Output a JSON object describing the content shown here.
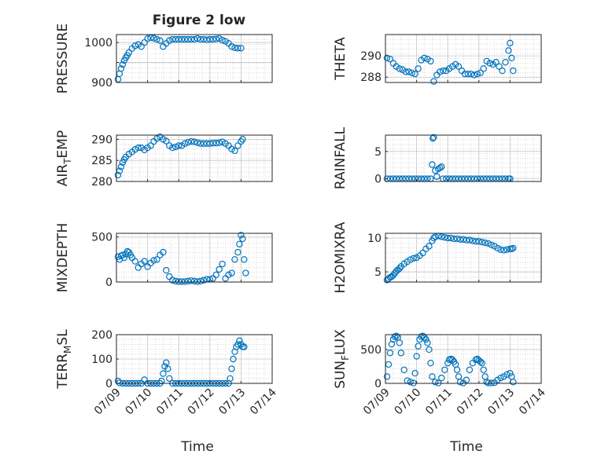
{
  "figure": {
    "title": "Figure 2 low"
  },
  "chart_data": [
    {
      "type": "scatter",
      "id": "pressure",
      "ylabel": "PRESSURE",
      "ylim": [
        900,
        1020
      ],
      "yticks": [
        900,
        950,
        1000
      ],
      "ytick_labels": [
        "900",
        "",
        "1000"
      ],
      "xlim": [
        0,
        5
      ],
      "xticks": [
        0,
        1,
        2,
        3,
        4,
        5
      ],
      "xlabel": "",
      "grid": true,
      "series": [
        {
          "color": "#0072BD",
          "x": [
            0.05,
            0.1,
            0.15,
            0.2,
            0.25,
            0.3,
            0.35,
            0.4,
            0.5,
            0.6,
            0.7,
            0.8,
            0.9,
            1.0,
            1.1,
            1.2,
            1.3,
            1.4,
            1.5,
            1.6,
            1.7,
            1.8,
            1.9,
            2.0,
            2.1,
            2.2,
            2.3,
            2.4,
            2.5,
            2.6,
            2.7,
            2.8,
            2.9,
            3.0,
            3.1,
            3.2,
            3.3,
            3.4,
            3.5,
            3.6,
            3.7,
            3.8,
            3.9,
            4.0
          ],
          "y": [
            908,
            922,
            935,
            945,
            955,
            962,
            968,
            975,
            985,
            992,
            995,
            990,
            1000,
            1010,
            1012,
            1011,
            1008,
            1005,
            990,
            998,
            1005,
            1008,
            1008,
            1008,
            1008,
            1008,
            1008,
            1008,
            1008,
            1010,
            1008,
            1008,
            1007,
            1008,
            1008,
            1009,
            1010,
            1006,
            1003,
            998,
            990,
            987,
            986,
            986
          ]
        }
      ]
    },
    {
      "type": "scatter",
      "id": "theta",
      "ylabel": "THETA",
      "ylim": [
        287.5,
        292
      ],
      "yticks": [
        288,
        290
      ],
      "ytick_labels": [
        "288",
        "290"
      ],
      "xlim": [
        0,
        5
      ],
      "xticks": [
        0,
        1,
        2,
        3,
        4,
        5
      ],
      "xlabel": "",
      "grid": true,
      "series": [
        {
          "color": "#0072BD",
          "x": [
            0.05,
            0.15,
            0.25,
            0.35,
            0.45,
            0.55,
            0.65,
            0.75,
            0.85,
            0.95,
            1.05,
            1.15,
            1.25,
            1.35,
            1.45,
            1.55,
            1.65,
            1.75,
            1.85,
            1.95,
            2.05,
            2.15,
            2.25,
            2.35,
            2.45,
            2.55,
            2.65,
            2.75,
            2.85,
            2.95,
            3.05,
            3.15,
            3.25,
            3.35,
            3.45,
            3.55,
            3.65,
            3.75,
            3.85,
            3.95,
            4.0,
            4.05,
            4.1
          ],
          "y": [
            289.8,
            289.7,
            289.3,
            289.0,
            288.8,
            288.7,
            288.5,
            288.5,
            288.4,
            288.3,
            288.8,
            289.6,
            289.8,
            289.7,
            289.5,
            287.6,
            288.2,
            288.5,
            288.6,
            288.6,
            288.8,
            289.0,
            289.2,
            289.0,
            288.6,
            288.3,
            288.3,
            288.3,
            288.2,
            288.3,
            288.4,
            288.8,
            289.5,
            289.3,
            289.2,
            289.4,
            289.0,
            288.6,
            289.4,
            290.5,
            291.2,
            289.8,
            288.6
          ]
        }
      ]
    },
    {
      "type": "scatter",
      "id": "air_temp",
      "ylabel": "AIR_TEMP",
      "ylim": [
        280,
        291
      ],
      "yticks": [
        280,
        285,
        290
      ],
      "ytick_labels": [
        "280",
        "285",
        "290"
      ],
      "xlim": [
        0,
        5
      ],
      "xticks": [
        0,
        1,
        2,
        3,
        4,
        5
      ],
      "xlabel": "",
      "grid": true,
      "series": [
        {
          "color": "#0072BD",
          "x": [
            0.05,
            0.1,
            0.15,
            0.2,
            0.25,
            0.3,
            0.4,
            0.5,
            0.6,
            0.7,
            0.8,
            0.9,
            1.0,
            1.1,
            1.2,
            1.3,
            1.4,
            1.5,
            1.6,
            1.7,
            1.8,
            1.9,
            2.0,
            2.1,
            2.2,
            2.3,
            2.4,
            2.5,
            2.6,
            2.7,
            2.8,
            2.9,
            3.0,
            3.1,
            3.2,
            3.3,
            3.4,
            3.5,
            3.6,
            3.7,
            3.8,
            3.9,
            4.0,
            4.05
          ],
          "y": [
            281.5,
            282.5,
            283.5,
            284.5,
            285.2,
            285.8,
            286.5,
            287.0,
            287.6,
            288.0,
            288.0,
            287.5,
            288.0,
            288.5,
            289.5,
            290.2,
            290.6,
            290.0,
            289.6,
            288.5,
            288.0,
            288.2,
            288.5,
            288.5,
            289.0,
            289.3,
            289.5,
            289.4,
            289.2,
            289.0,
            289.0,
            289.0,
            289.0,
            289.1,
            289.1,
            289.2,
            289.4,
            289.0,
            288.5,
            287.7,
            287.3,
            288.5,
            289.5,
            290.0
          ]
        }
      ]
    },
    {
      "type": "scatter",
      "id": "rainfall",
      "ylabel": "RAINFALL",
      "ylim": [
        -0.5,
        8
      ],
      "yticks": [
        0,
        5
      ],
      "ytick_labels": [
        "0",
        "5"
      ],
      "xlim": [
        0,
        5
      ],
      "xticks": [
        0,
        1,
        2,
        3,
        4,
        5
      ],
      "xlabel": "",
      "grid": true,
      "series": [
        {
          "color": "#0072BD",
          "x": [
            0.05,
            0.15,
            0.25,
            0.35,
            0.45,
            0.55,
            0.65,
            0.75,
            0.85,
            0.95,
            1.05,
            1.15,
            1.25,
            1.35,
            1.45,
            1.5,
            1.52,
            1.55,
            1.6,
            1.65,
            1.7,
            1.75,
            1.8,
            1.85,
            1.95,
            2.05,
            2.15,
            2.25,
            2.35,
            2.45,
            2.55,
            2.65,
            2.75,
            2.85,
            2.95,
            3.05,
            3.15,
            3.25,
            3.35,
            3.45,
            3.55,
            3.65,
            3.75,
            3.85,
            3.95,
            4.0
          ],
          "y": [
            0,
            0,
            0,
            0,
            0,
            0,
            0,
            0,
            0,
            0,
            0,
            0,
            0,
            0,
            0,
            2.6,
            7.4,
            7.6,
            1.5,
            0.4,
            1.8,
            2.0,
            2.2,
            0,
            0,
            0,
            0,
            0,
            0,
            0,
            0,
            0,
            0,
            0,
            0,
            0,
            0,
            0,
            0,
            0,
            0,
            0,
            0,
            0,
            0,
            0
          ]
        }
      ]
    },
    {
      "type": "scatter",
      "id": "mixdepth",
      "ylabel": "MIXDEPTH",
      "ylim": [
        0,
        540
      ],
      "yticks": [
        0,
        500
      ],
      "ytick_labels": [
        "0",
        "500"
      ],
      "xlim": [
        0,
        5
      ],
      "xticks": [
        0,
        1,
        2,
        3,
        4,
        5
      ],
      "xlabel": "",
      "grid": true,
      "series": [
        {
          "color": "#0072BD",
          "x": [
            0.05,
            0.1,
            0.15,
            0.2,
            0.25,
            0.3,
            0.35,
            0.4,
            0.45,
            0.5,
            0.6,
            0.7,
            0.8,
            0.9,
            1.0,
            1.1,
            1.2,
            1.3,
            1.4,
            1.5,
            1.6,
            1.7,
            1.8,
            1.9,
            2.0,
            2.1,
            2.2,
            2.3,
            2.4,
            2.5,
            2.6,
            2.7,
            2.8,
            2.9,
            3.0,
            3.1,
            3.2,
            3.3,
            3.4,
            3.5,
            3.6,
            3.7,
            3.8,
            3.9,
            3.95,
            4.0,
            4.05,
            4.1,
            4.15
          ],
          "y": [
            280,
            250,
            290,
            300,
            270,
            310,
            340,
            330,
            300,
            270,
            230,
            160,
            200,
            230,
            170,
            210,
            240,
            250,
            300,
            330,
            130,
            60,
            20,
            10,
            5,
            5,
            5,
            10,
            15,
            10,
            5,
            10,
            20,
            30,
            30,
            40,
            80,
            140,
            200,
            40,
            80,
            100,
            250,
            330,
            420,
            520,
            480,
            250,
            100
          ]
        }
      ]
    },
    {
      "type": "scatter",
      "id": "h2omixra",
      "ylabel": "H2OMIXRA",
      "ylim": [
        3.5,
        10.7
      ],
      "yticks": [
        5,
        10
      ],
      "ytick_labels": [
        "5",
        "10"
      ],
      "xlim": [
        0,
        5
      ],
      "xticks": [
        0,
        1,
        2,
        3,
        4,
        5
      ],
      "xlabel": "",
      "grid": true,
      "series": [
        {
          "color": "#0072BD",
          "x": [
            0.05,
            0.1,
            0.15,
            0.2,
            0.25,
            0.3,
            0.35,
            0.4,
            0.45,
            0.5,
            0.6,
            0.7,
            0.8,
            0.9,
            1.0,
            1.1,
            1.2,
            1.3,
            1.4,
            1.5,
            1.55,
            1.6,
            1.7,
            1.8,
            1.9,
            2.0,
            2.1,
            2.2,
            2.3,
            2.4,
            2.5,
            2.6,
            2.7,
            2.8,
            2.9,
            3.0,
            3.1,
            3.2,
            3.3,
            3.4,
            3.5,
            3.6,
            3.7,
            3.8,
            3.9,
            4.0,
            4.05,
            4.1
          ],
          "y": [
            3.8,
            4.0,
            4.2,
            4.3,
            4.5,
            4.8,
            5.1,
            5.3,
            5.5,
            5.8,
            6.2,
            6.5,
            6.8,
            7.0,
            7.1,
            7.4,
            7.8,
            8.4,
            8.8,
            9.6,
            10.0,
            10.2,
            10.3,
            10.2,
            10.1,
            10.0,
            10.0,
            9.9,
            9.9,
            9.8,
            9.8,
            9.7,
            9.7,
            9.6,
            9.5,
            9.5,
            9.4,
            9.3,
            9.2,
            9.0,
            8.8,
            8.5,
            8.3,
            8.2,
            8.3,
            8.4,
            8.4,
            8.5
          ]
        }
      ]
    },
    {
      "type": "scatter",
      "id": "terr_msl",
      "ylabel": "TERR_MSL",
      "ylim": [
        0,
        200
      ],
      "yticks": [
        0,
        100,
        200
      ],
      "ytick_labels": [
        "0",
        "100",
        "200"
      ],
      "xlim": [
        0,
        5
      ],
      "xticks": [
        0,
        1,
        2,
        3,
        4,
        5
      ],
      "xtick_labels": [
        "07/09",
        "07/10",
        "07/11",
        "07/12",
        "07/13",
        "07/14"
      ],
      "xlabel": "Time",
      "grid": true,
      "series": [
        {
          "color": "#0072BD",
          "x": [
            0.05,
            0.1,
            0.2,
            0.3,
            0.4,
            0.5,
            0.6,
            0.7,
            0.8,
            0.9,
            1.0,
            1.1,
            1.2,
            1.3,
            1.4,
            1.45,
            1.5,
            1.55,
            1.6,
            1.65,
            1.7,
            1.8,
            1.9,
            2.0,
            2.1,
            2.2,
            2.3,
            2.4,
            2.5,
            2.6,
            2.7,
            2.8,
            2.9,
            3.0,
            3.1,
            3.2,
            3.3,
            3.4,
            3.5,
            3.6,
            3.65,
            3.7,
            3.75,
            3.8,
            3.85,
            3.9,
            3.95,
            4.0,
            4.05,
            4.1
          ],
          "y": [
            10,
            2,
            0,
            0,
            0,
            0,
            0,
            0,
            0,
            15,
            0,
            0,
            0,
            0,
            0,
            10,
            40,
            70,
            85,
            60,
            20,
            0,
            0,
            0,
            0,
            0,
            0,
            0,
            0,
            0,
            0,
            0,
            0,
            0,
            0,
            0,
            0,
            0,
            0,
            0,
            20,
            60,
            100,
            130,
            150,
            160,
            175,
            160,
            150,
            150
          ]
        }
      ]
    },
    {
      "type": "scatter",
      "id": "sun_flux",
      "ylabel": "SUN_FLUX",
      "ylim": [
        0,
        720
      ],
      "yticks": [
        0,
        500
      ],
      "ytick_labels": [
        "0",
        "500"
      ],
      "xlim": [
        0,
        5
      ],
      "xticks": [
        0,
        1,
        2,
        3,
        4,
        5
      ],
      "xtick_labels": [
        "07/09",
        "07/10",
        "07/11",
        "07/12",
        "07/13",
        "07/14"
      ],
      "xlabel": "Time",
      "grid": true,
      "series": [
        {
          "color": "#0072BD",
          "x": [
            0.05,
            0.1,
            0.15,
            0.2,
            0.25,
            0.3,
            0.35,
            0.4,
            0.45,
            0.5,
            0.6,
            0.7,
            0.8,
            0.9,
            0.95,
            1.0,
            1.05,
            1.1,
            1.15,
            1.2,
            1.25,
            1.3,
            1.35,
            1.4,
            1.45,
            1.5,
            1.6,
            1.7,
            1.8,
            1.9,
            2.0,
            2.05,
            2.1,
            2.15,
            2.2,
            2.25,
            2.3,
            2.35,
            2.4,
            2.5,
            2.6,
            2.7,
            2.8,
            2.9,
            2.95,
            3.0,
            3.05,
            3.1,
            3.15,
            3.2,
            3.25,
            3.3,
            3.4,
            3.5,
            3.6,
            3.7,
            3.8,
            3.9,
            4.0,
            4.05,
            4.1
          ],
          "y": [
            100,
            280,
            450,
            580,
            650,
            690,
            700,
            680,
            600,
            450,
            200,
            40,
            20,
            5,
            150,
            400,
            550,
            650,
            690,
            700,
            680,
            650,
            600,
            500,
            300,
            100,
            20,
            5,
            80,
            200,
            300,
            350,
            360,
            350,
            320,
            280,
            200,
            100,
            20,
            5,
            50,
            200,
            300,
            350,
            360,
            340,
            320,
            300,
            200,
            100,
            20,
            5,
            5,
            10,
            50,
            80,
            100,
            130,
            150,
            100,
            20
          ]
        }
      ]
    }
  ]
}
